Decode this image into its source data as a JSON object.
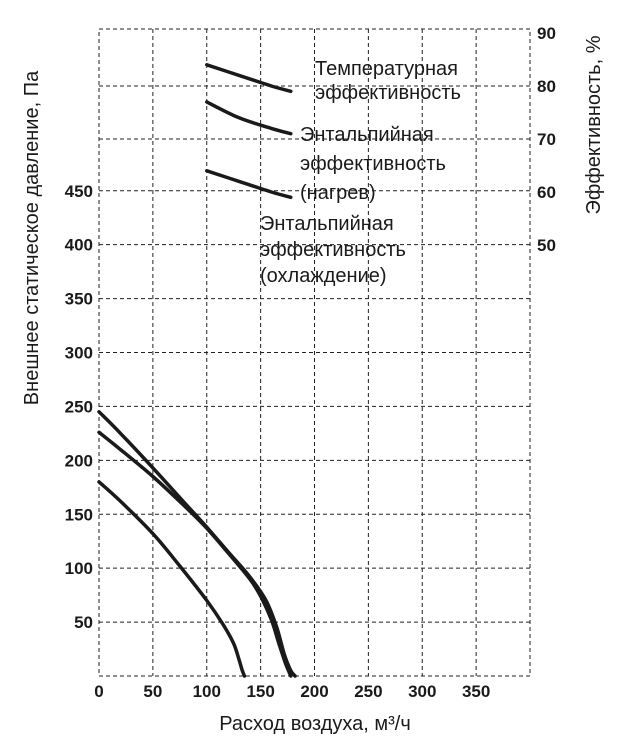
{
  "chart_data": {
    "type": "line",
    "xlabel": "Расход воздуха, м³/ч",
    "ylabel_left": "Внешнее статическое давление, Па",
    "ylabel_right": "Эффективность, %",
    "x_ticks": [
      "0",
      "50",
      "100",
      "150",
      "200",
      "250",
      "300",
      "350"
    ],
    "y_left_ticks": [
      "50",
      "100",
      "150",
      "200",
      "250",
      "300",
      "350",
      "400",
      "450"
    ],
    "y_right_ticks": [
      "50",
      "60",
      "70",
      "80",
      "90"
    ],
    "xlim": [
      0,
      400
    ],
    "ylim_left": [
      0,
      600
    ],
    "ylim_right": [
      0,
      90
    ],
    "grid": true,
    "pressure_series": [
      {
        "x": [
          0,
          20,
          50,
          80,
          100,
          120,
          140,
          155,
          165,
          172,
          178,
          182
        ],
        "y": [
          245,
          225,
          193,
          160,
          138,
          115,
          92,
          70,
          45,
          20,
          5,
          0
        ]
      },
      {
        "x": [
          0,
          20,
          50,
          80,
          100,
          120,
          140,
          150,
          160,
          167,
          173,
          178
        ],
        "y": [
          226,
          210,
          185,
          157,
          137,
          114,
          90,
          74,
          52,
          30,
          12,
          0
        ]
      },
      {
        "x": [
          0,
          20,
          50,
          75,
          100,
          115,
          125,
          130,
          133,
          135
        ],
        "y": [
          180,
          162,
          132,
          102,
          70,
          48,
          30,
          15,
          5,
          0
        ]
      }
    ],
    "efficiency_series": [
      {
        "label": [
          "Температурная",
          "эффективность"
        ],
        "x": [
          100,
          130,
          160,
          178
        ],
        "y": [
          84,
          82,
          80,
          79
        ]
      },
      {
        "label": [
          "Энтальпийная",
          "эффективность",
          "(нагрев)"
        ],
        "x": [
          100,
          130,
          160,
          178
        ],
        "y": [
          77,
          74,
          72,
          71
        ]
      },
      {
        "label": [
          "Энтальпийная",
          "эффективность",
          "(охлаждение)"
        ],
        "x": [
          100,
          130,
          160,
          178
        ],
        "y": [
          64,
          62,
          60,
          59
        ]
      }
    ]
  }
}
